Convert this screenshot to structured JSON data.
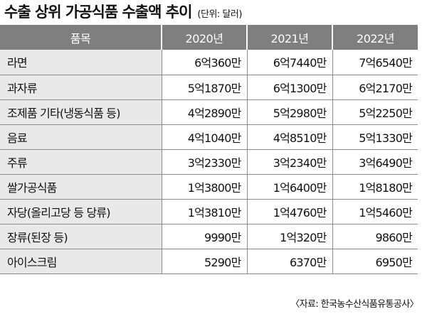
{
  "header": {
    "title": "수출 상위 가공식품 수출액 추이",
    "unit": "(단위: 달러)"
  },
  "table": {
    "columns": [
      "품목",
      "2020년",
      "2021년",
      "2022년"
    ],
    "rows": [
      {
        "item": "라면",
        "y2020": "6억360만",
        "y2021": "6억7440만",
        "y2022": "7억6540만"
      },
      {
        "item": "과자류",
        "y2020": "5억1870만",
        "y2021": "6억1300만",
        "y2022": "6억2170만"
      },
      {
        "item": "조제품 기타(냉동식품 등)",
        "y2020": "4억2890만",
        "y2021": "5억2980만",
        "y2022": "5억2250만"
      },
      {
        "item": "음료",
        "y2020": "4억1040만",
        "y2021": "4억8510만",
        "y2022": "5억1330만"
      },
      {
        "item": "주류",
        "y2020": "3억2330만",
        "y2021": "3억2340만",
        "y2022": "3억6490만"
      },
      {
        "item": "쌀가공식품",
        "y2020": "1억3800만",
        "y2021": "1억6400만",
        "y2022": "1억8180만"
      },
      {
        "item": "자당(올리고당 등 당류)",
        "y2020": "1억3810만",
        "y2021": "1억4760만",
        "y2022": "1억5460만"
      },
      {
        "item": "장류(된장 등)",
        "y2020": "9990만",
        "y2021": "1억320만",
        "y2022": "9860만"
      },
      {
        "item": "아이스크림",
        "y2020": "5290만",
        "y2021": "6370만",
        "y2022": "6950만"
      }
    ]
  },
  "footer": {
    "source": "〈자료: 한국농수산식품유통공사〉"
  }
}
